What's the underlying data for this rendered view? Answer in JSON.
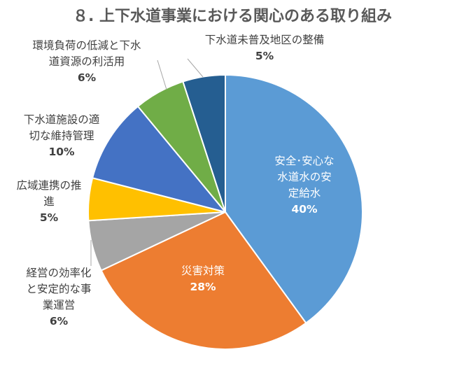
{
  "chart_data": {
    "type": "pie",
    "title": "８. 上下水道事業における関心のある取り組み",
    "start_angle_deg": 0,
    "direction": "clockwise",
    "slices": [
      {
        "label": "安全･安心な水道水の安定給水",
        "label_lines": [
          "安全･安心な",
          "水道水の安",
          "定給水"
        ],
        "value": 40,
        "display": "40%",
        "color": "#5B9BD5"
      },
      {
        "label": "災害対策",
        "label_lines": [
          "災害対策"
        ],
        "value": 28,
        "display": "28%",
        "color": "#ED7D31"
      },
      {
        "label": "経営の効率化と安定的な事業運営",
        "label_lines": [
          "経営の効率化",
          "と安定的な事",
          "業運営"
        ],
        "value": 6,
        "display": "6%",
        "color": "#A5A5A5"
      },
      {
        "label": "広域連携の推進",
        "label_lines": [
          "広域連携の推",
          "進"
        ],
        "value": 5,
        "display": "5%",
        "color": "#FFC000"
      },
      {
        "label": "下水道施設の適切な維持管理",
        "label_lines": [
          "下水道施設の適",
          "切な維持管理"
        ],
        "value": 10,
        "display": "10%",
        "color": "#4472C4"
      },
      {
        "label": "環境負荷の低減と下水道資源の利活用",
        "label_lines": [
          "環境負荷の低減と下水",
          "道資源の利活用"
        ],
        "value": 6,
        "display": "6%",
        "color": "#70AD47"
      },
      {
        "label": "下水道未普及地区の整備",
        "label_lines": [
          "下水道未普及地区の整備"
        ],
        "value": 5,
        "display": "5%",
        "color": "#255E91"
      }
    ]
  }
}
